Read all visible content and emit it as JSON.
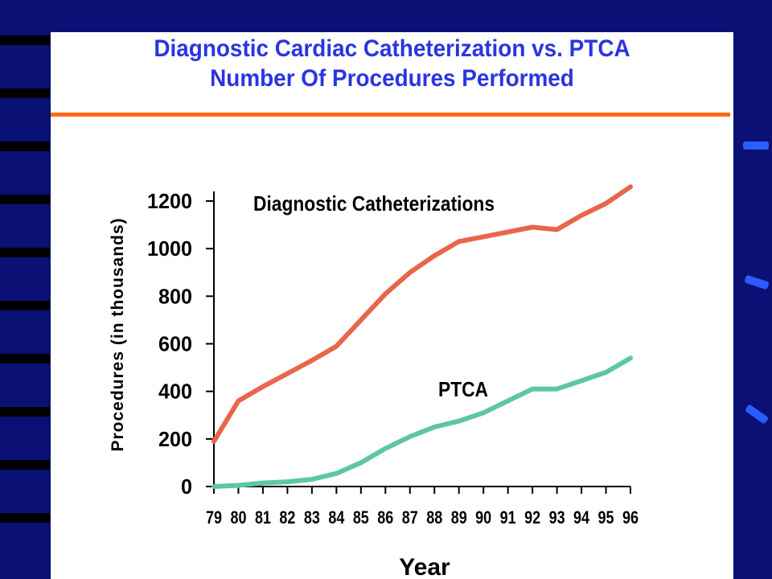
{
  "colors": {
    "background": "#0a1074",
    "title": "#2a35e0",
    "rule": "#ff6a10",
    "series_cath": "#e8664b",
    "series_ptca": "#5dc7a3"
  },
  "slide": {
    "title_line1": "Diagnostic Cardiac Catheterization vs. PTCA",
    "title_line2": "Number Of Procedures Performed"
  },
  "chart_data": {
    "type": "line",
    "title": "Diagnostic Cardiac Catheterization vs. PTCA Number Of Procedures Performed",
    "xlabel": "Year",
    "ylabel": "Procedures (in thousands)",
    "x": [
      "79",
      "80",
      "81",
      "82",
      "83",
      "84",
      "85",
      "86",
      "87",
      "88",
      "89",
      "90",
      "91",
      "92",
      "93",
      "94",
      "95",
      "96"
    ],
    "ylim": [
      0,
      1200
    ],
    "yticks": [
      0,
      200,
      400,
      600,
      800,
      1000,
      1200
    ],
    "grid": false,
    "legend": "none",
    "series": [
      {
        "name": "Diagnostic Catheterizations",
        "color": "#e8664b",
        "values": [
          190,
          360,
          420,
          475,
          530,
          590,
          700,
          810,
          900,
          970,
          1030,
          1050,
          1070,
          1090,
          1080,
          1140,
          1190,
          1260
        ]
      },
      {
        "name": "PTCA",
        "color": "#5dc7a3",
        "values": [
          0,
          5,
          15,
          20,
          30,
          55,
          100,
          160,
          210,
          250,
          275,
          310,
          360,
          410,
          410,
          445,
          480,
          540
        ]
      }
    ]
  }
}
